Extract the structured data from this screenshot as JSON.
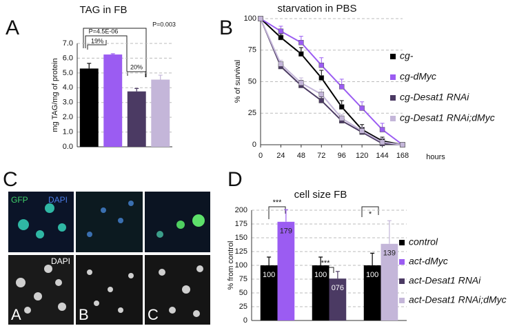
{
  "chart_data": [
    {
      "type": "bar",
      "panel": "A",
      "title": "TAG in FB",
      "y_label": "mg TAG/mg of protein",
      "categories": [
        null,
        null,
        null,
        null
      ],
      "values": [
        5.3,
        6.25,
        3.75,
        4.55
      ],
      "errors": [
        0.35,
        0.05,
        0.2,
        0.3
      ],
      "colors": [
        "#000000",
        "#9b5cf2",
        "#4b3a63",
        "#c4b6d9"
      ],
      "ylim": [
        0,
        7
      ],
      "yticks": [
        {
          "value": 0,
          "label": "0.0"
        },
        {
          "value": 1,
          "label": "1.0"
        },
        {
          "value": 2,
          "label": "2.0"
        },
        {
          "value": 3,
          "label": "3.0"
        },
        {
          "value": 4,
          "label": "4.0"
        },
        {
          "value": 5,
          "label": "5.0"
        },
        {
          "value": 6,
          "label": "6.0"
        },
        {
          "value": 7,
          "label": "7.0"
        }
      ],
      "grid": true,
      "annotations": [
        "19%",
        "P=4.5E-06",
        "20%",
        "P=0.003"
      ]
    },
    {
      "type": "line",
      "panel": "B",
      "title": "starvation in PBS",
      "y_label": "% of survival",
      "x_label": "hours",
      "x": [
        0,
        24,
        48,
        72,
        96,
        120,
        144,
        168
      ],
      "xlim": [
        0,
        168
      ],
      "xticks": [
        0,
        24,
        48,
        72,
        96,
        120,
        144,
        168
      ],
      "ylim": [
        0,
        100
      ],
      "yticks": [
        0,
        25,
        50,
        75,
        100
      ],
      "grid": true,
      "legend": "right",
      "series": [
        {
          "name": "cg-",
          "color": "#000000",
          "values": [
            100,
            85,
            72,
            53,
            30,
            12,
            3,
            0
          ],
          "errors": [
            0,
            3,
            5,
            6,
            5,
            4,
            3,
            0
          ]
        },
        {
          "name": "cg-dMyc",
          "color": "#9b5cf2",
          "values": [
            100,
            90,
            81,
            63,
            46,
            29,
            12,
            0
          ],
          "errors": [
            0,
            4,
            5,
            6,
            6,
            5,
            5,
            0
          ]
        },
        {
          "name": "cg-Desat1 RNAi",
          "color": "#4b3a63",
          "values": [
            100,
            62,
            47,
            35,
            19,
            10,
            1,
            0
          ],
          "errors": [
            0,
            3,
            4,
            3,
            3,
            2,
            2,
            0
          ]
        },
        {
          "name": "cg-Desat1 RNAi;dMyc",
          "color": "#c4b6d9",
          "values": [
            100,
            64,
            49,
            40,
            21,
            11,
            2,
            0
          ],
          "errors": [
            0,
            3,
            4,
            4,
            3,
            3,
            3,
            0
          ]
        }
      ]
    },
    {
      "type": "bar",
      "panel": "D",
      "title": "cell size FB",
      "y_label": "% from control",
      "categories": [
        null,
        null,
        null
      ],
      "ylim": [
        0,
        200
      ],
      "yticks": [
        0,
        25,
        50,
        75,
        100,
        125,
        150,
        175,
        200
      ],
      "grid": true,
      "legend": "right",
      "show_values": true,
      "annotations": [
        "***",
        "***",
        "*"
      ],
      "series": [
        {
          "name": "control",
          "color": "#000000",
          "values": [
            100,
            100,
            100
          ],
          "errors": [
            15,
            15,
            22
          ]
        },
        {
          "name": "act-dMyc",
          "color": "#9b5cf2",
          "values": [
            179,
            null,
            null
          ],
          "errors": [
            22,
            null,
            null
          ]
        },
        {
          "name": "act-Desat1 RNAi",
          "color": "#4b3a63",
          "values": [
            null,
            76,
            null
          ],
          "value_labels": [
            null,
            "076",
            null
          ],
          "errors": [
            null,
            13,
            null
          ]
        },
        {
          "name": "act-Desat1 RNAi;dMyc",
          "color": "#c4b6d9",
          "values": [
            null,
            null,
            139
          ],
          "errors": [
            null,
            null,
            42
          ]
        }
      ]
    }
  ],
  "micrographs": {
    "panel": "C",
    "channel_labels": [
      "GFP",
      "DAPI",
      "DAPI"
    ],
    "image_labels": [
      "A",
      "B",
      "C"
    ]
  }
}
